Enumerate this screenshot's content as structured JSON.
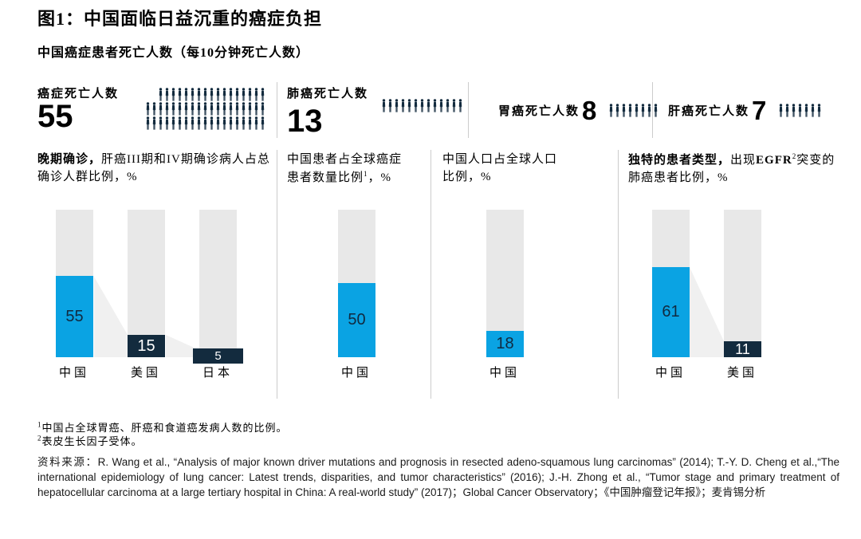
{
  "title": "图1：中国面临日益沉重的癌症负担",
  "subtitle": "中国癌症患者死亡人数（每10分钟死亡人数）",
  "colors": {
    "accent_blue": "#0aa3e3",
    "dark_navy": "#132b3e",
    "column_gray": "#e8e8e8",
    "connector_gray": "#f0f0f0",
    "divider_gray": "#cccccc"
  },
  "stats": [
    {
      "label": "癌症死亡人数",
      "value": "55",
      "icon_rows": [
        17,
        19,
        19
      ]
    },
    {
      "label": "肺癌死亡人数",
      "value": "13",
      "icon_rows": [
        13
      ]
    },
    {
      "label": "胃癌死亡人数",
      "value": "8",
      "icon_rows": [
        8
      ]
    },
    {
      "label": "肝癌死亡人数",
      "value": "7",
      "icon_rows": [
        7
      ]
    }
  ],
  "chart_data": [
    {
      "type": "bar",
      "title": "晚期确诊，肝癌III期和IV期确诊病人占总确诊人群比例，%",
      "title_bold": "晚期确诊，",
      "title_rest": "肝癌III期和IV期确诊病人占总确诊人群比例，%",
      "categories": [
        "中国",
        "美国",
        "日本"
      ],
      "values": [
        55,
        15,
        5
      ],
      "ylim": [
        0,
        100
      ],
      "unit": "%"
    },
    {
      "type": "bar",
      "title": "中国患者占全球癌症患者数量比例1，%",
      "title_main": "中国患者占全球癌症患者数量比例",
      "title_sup": "1",
      "title_tail": "，%",
      "categories": [
        "中国"
      ],
      "values": [
        50
      ],
      "ylim": [
        0,
        100
      ],
      "unit": "%"
    },
    {
      "type": "bar",
      "title": "中国人口占全球人口比例，%",
      "title_main": "中国人口占全球人口比例，%",
      "categories": [
        "中国"
      ],
      "values": [
        18
      ],
      "ylim": [
        0,
        100
      ],
      "unit": "%"
    },
    {
      "type": "bar",
      "title": "独特的患者类型，出现EGFR2突变的肺癌患者比例，%",
      "title_bold": "独特的患者类型，",
      "title_mid": "出现",
      "title_egfr": "EGFR",
      "title_sup": "2",
      "title_tail": "突变的肺癌患者比例，%",
      "categories": [
        "中国",
        "美国"
      ],
      "values": [
        61,
        11
      ],
      "ylim": [
        0,
        100
      ],
      "unit": "%"
    }
  ],
  "footnotes": [
    {
      "sup": "1",
      "text": "中国占全球胃癌、肝癌和食道癌发病人数的比例。"
    },
    {
      "sup": "2",
      "text": "表皮生长因子受体。"
    }
  ],
  "source_label": "资料来源：",
  "source_text": "R. Wang et al., “Analysis of major known driver mutations and prognosis in resected adeno-squamous lung carcinomas” (2014); T.-Y. D. Cheng et al.,“The international epidemiology of lung cancer: Latest trends, disparities, and tumor characteristics” (2016); J.-H. Zhong et al., “Tumor stage and primary treatment of hepatocellular carcinoma at a large tertiary hospital in China: A real-world study” (2017)；Global Cancer Observatory；《中国肿瘤登记年报》；麦肯锡分析"
}
